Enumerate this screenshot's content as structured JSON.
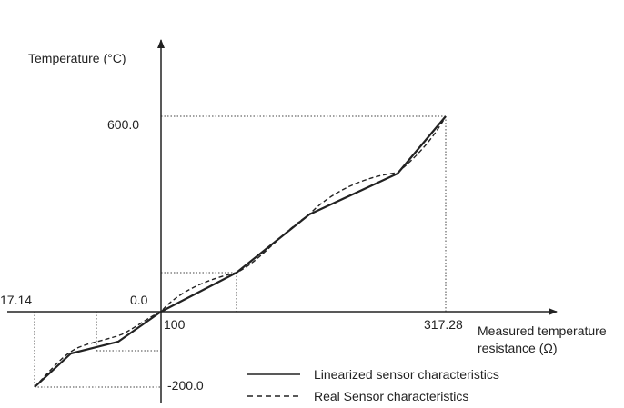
{
  "y_axis_label": "Temperature (°C)",
  "x_axis_label_line1": "Measured temperature",
  "x_axis_label_line2": "resistance (Ω)",
  "tick_600": "600.0",
  "tick_0": "0.0",
  "tick_minus200": "-200.0",
  "tick_17_14": "17.14",
  "tick_100": "100",
  "tick_317_28": "317.28",
  "legend": {
    "linearized": "Linearized sensor characteristics",
    "real": "Real Sensor characteristics"
  },
  "colors": {
    "line": "#222222",
    "guide": "#444444"
  }
}
